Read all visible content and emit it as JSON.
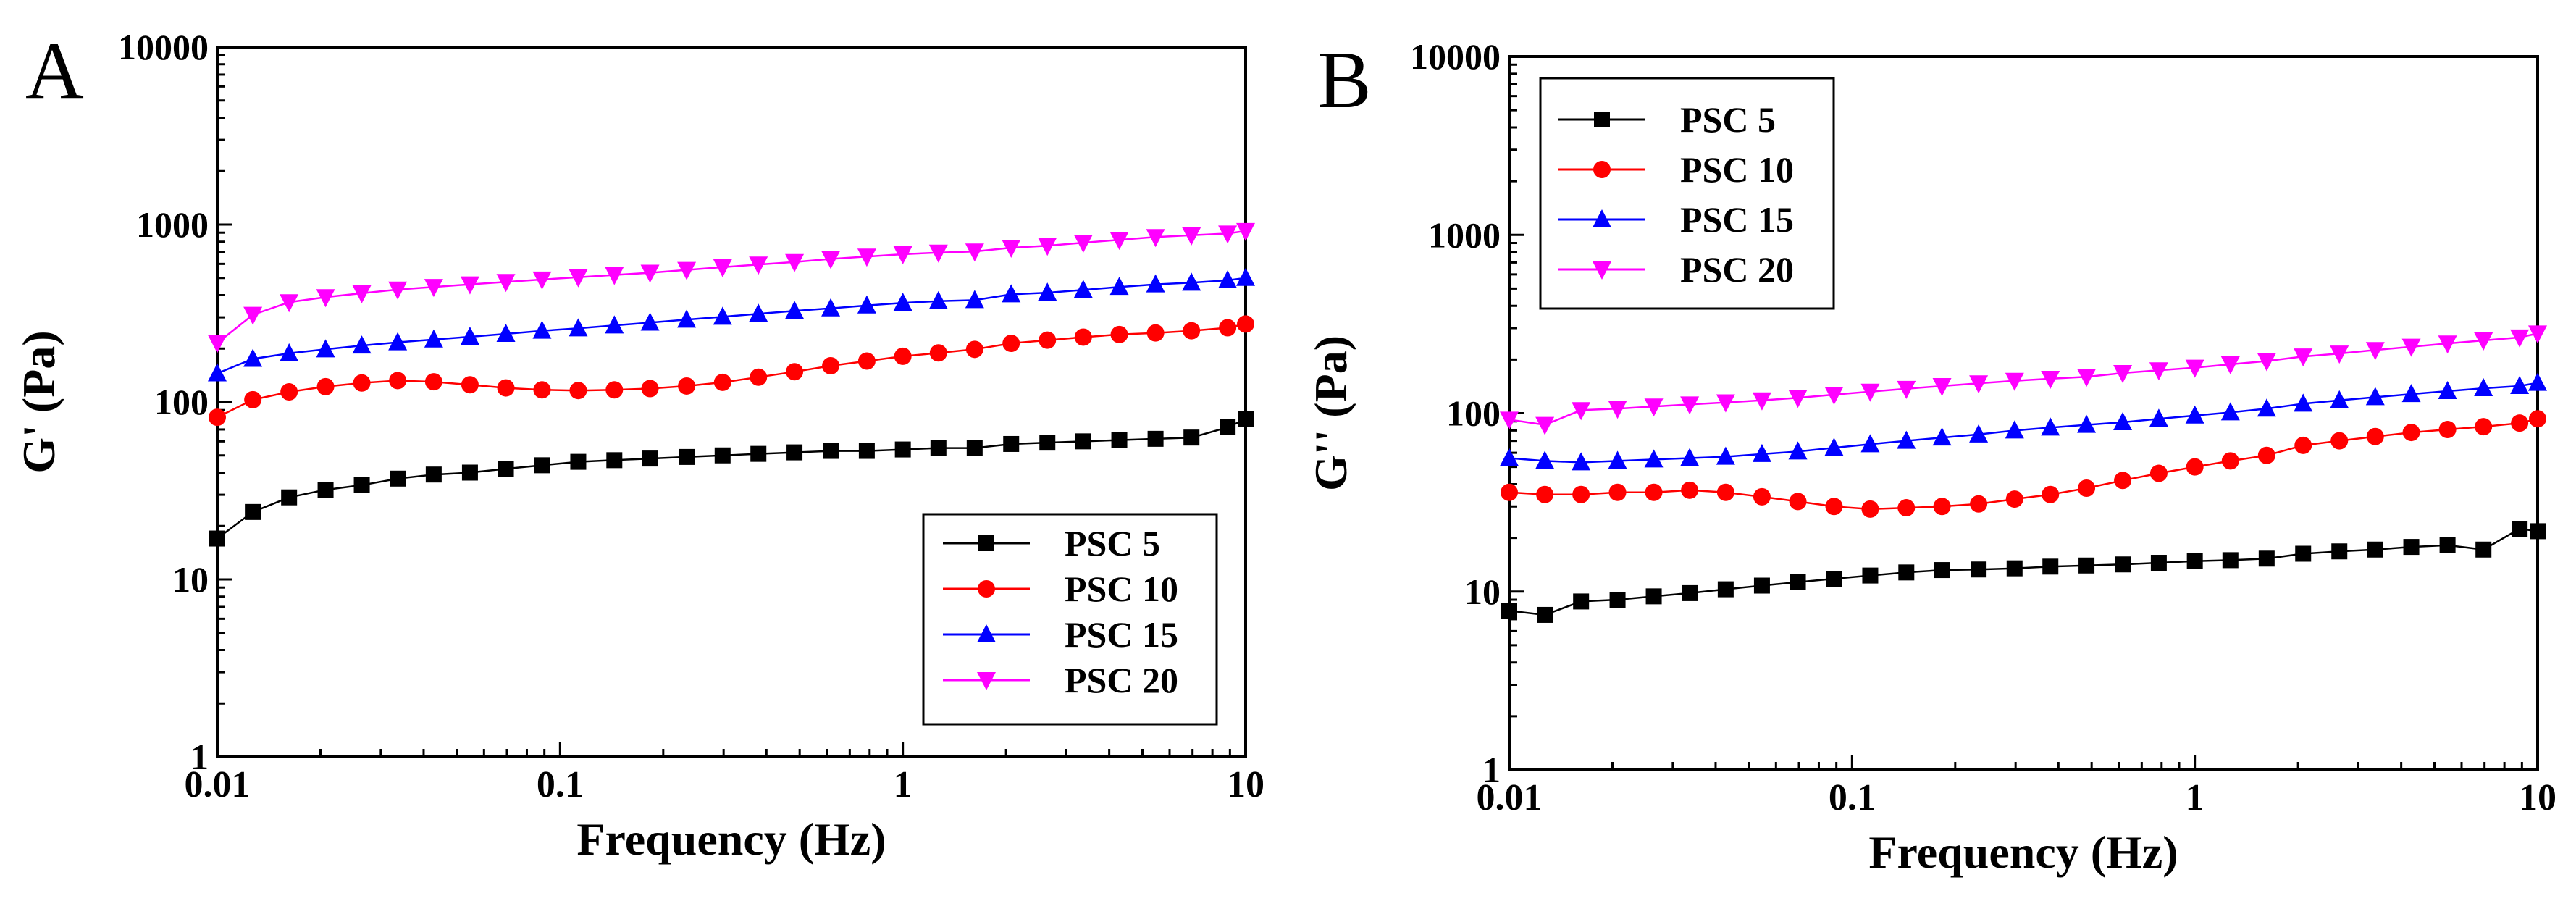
{
  "chart_data": [
    {
      "panel_label": "A",
      "type": "line",
      "xscale": "log",
      "yscale": "log",
      "xlim": [
        0.01,
        10
      ],
      "ylim": [
        1,
        10000
      ],
      "xlabel": "Frequency (Hz)",
      "ylabel": "G' (Pa)",
      "xticks": [
        0.01,
        0.1,
        1,
        10
      ],
      "xtick_labels": [
        "0.01",
        "0.1",
        "1",
        "10"
      ],
      "yticks": [
        1,
        10,
        100,
        1000,
        10000
      ],
      "ytick_labels": [
        "1",
        "10",
        "100",
        "1000",
        "10000"
      ],
      "legend_position": "lower-right",
      "x": [
        0.01,
        0.0127,
        0.0162,
        0.0207,
        0.0264,
        0.0336,
        0.0428,
        0.0546,
        0.0695,
        0.0886,
        0.113,
        0.144,
        0.183,
        0.234,
        0.298,
        0.379,
        0.483,
        0.616,
        0.785,
        1.0,
        1.27,
        1.62,
        2.07,
        2.64,
        3.36,
        4.28,
        5.46,
        6.95,
        8.86,
        10
      ],
      "series": [
        {
          "name": "PSC 5",
          "color": "#000000",
          "marker": "square",
          "values": [
            17,
            24,
            29,
            32,
            34,
            37,
            39,
            40,
            42,
            44,
            46,
            47,
            48,
            49,
            50,
            51,
            52,
            53,
            53,
            54,
            55,
            55,
            58,
            59,
            60,
            61,
            62,
            63,
            72,
            80
          ]
        },
        {
          "name": "PSC 10",
          "color": "#ff0000",
          "marker": "circle",
          "values": [
            82,
            103,
            114,
            122,
            128,
            132,
            130,
            125,
            120,
            117,
            116,
            117,
            119,
            123,
            129,
            138,
            148,
            160,
            170,
            181,
            189,
            198,
            214,
            223,
            232,
            240,
            245,
            252,
            262,
            275
          ]
        },
        {
          "name": "PSC 15",
          "color": "#0000ff",
          "marker": "triangle-up",
          "values": [
            145,
            175,
            188,
            198,
            208,
            217,
            225,
            233,
            242,
            252,
            260,
            270,
            280,
            291,
            302,
            314,
            326,
            337,
            350,
            362,
            370,
            375,
            404,
            413,
            428,
            445,
            460,
            470,
            485,
            500
          ]
        },
        {
          "name": "PSC 20",
          "color": "#ff00ff",
          "marker": "triangle-down",
          "values": [
            215,
            310,
            365,
            390,
            410,
            430,
            445,
            460,
            475,
            490,
            505,
            520,
            535,
            555,
            575,
            595,
            615,
            640,
            660,
            680,
            695,
            705,
            740,
            760,
            790,
            820,
            850,
            870,
            890,
            920
          ]
        }
      ]
    },
    {
      "panel_label": "B",
      "type": "line",
      "xscale": "log",
      "yscale": "log",
      "xlim": [
        0.01,
        10
      ],
      "ylim": [
        1,
        10000
      ],
      "xlabel": "Frequency (Hz)",
      "ylabel": "G'' (Pa)",
      "xticks": [
        0.01,
        0.1,
        1,
        10
      ],
      "xtick_labels": [
        "0.01",
        "0.1",
        "1",
        "10"
      ],
      "yticks": [
        1,
        10,
        100,
        1000,
        10000
      ],
      "ytick_labels": [
        "1",
        "10",
        "100",
        "1000",
        "10000"
      ],
      "legend_position": "upper-left",
      "x": [
        0.01,
        0.0127,
        0.0162,
        0.0207,
        0.0264,
        0.0336,
        0.0428,
        0.0546,
        0.0695,
        0.0886,
        0.113,
        0.144,
        0.183,
        0.234,
        0.298,
        0.379,
        0.483,
        0.616,
        0.785,
        1.0,
        1.27,
        1.62,
        2.07,
        2.64,
        3.36,
        4.28,
        5.46,
        6.95,
        8.86,
        10
      ],
      "series": [
        {
          "name": "PSC 5",
          "color": "#000000",
          "marker": "square",
          "values": [
            7.8,
            7.4,
            8.8,
            9.0,
            9.4,
            9.8,
            10.3,
            10.8,
            11.3,
            11.8,
            12.3,
            12.8,
            13.2,
            13.3,
            13.5,
            13.8,
            14.0,
            14.2,
            14.5,
            14.8,
            15.0,
            15.3,
            16.3,
            16.8,
            17.2,
            17.8,
            18.2,
            17.2,
            22.5,
            21.8
          ]
        },
        {
          "name": "PSC 10",
          "color": "#ff0000",
          "marker": "circle",
          "values": [
            36,
            35,
            35,
            36,
            36,
            37,
            36,
            34,
            32,
            30,
            29,
            29.5,
            30,
            31,
            33,
            35,
            38,
            42,
            46,
            50,
            54,
            58,
            66,
            70,
            74,
            78,
            81,
            84,
            88,
            93
          ]
        },
        {
          "name": "PSC 15",
          "color": "#0000ff",
          "marker": "triangle-up",
          "values": [
            56,
            54,
            53,
            54,
            55,
            56,
            57,
            59,
            61,
            64,
            67,
            70,
            73,
            76,
            80,
            83,
            86,
            89,
            93,
            97,
            101,
            106,
            113,
            118,
            123,
            128,
            133,
            138,
            142,
            148
          ]
        },
        {
          "name": "PSC 20",
          "color": "#ff00ff",
          "marker": "triangle-down",
          "values": [
            92,
            86,
            104,
            106,
            109,
            112,
            115,
            118,
            122,
            127,
            132,
            137,
            142,
            147,
            152,
            156,
            160,
            168,
            174,
            180,
            188,
            196,
            208,
            216,
            226,
            236,
            246,
            256,
            266,
            280
          ]
        }
      ]
    }
  ]
}
